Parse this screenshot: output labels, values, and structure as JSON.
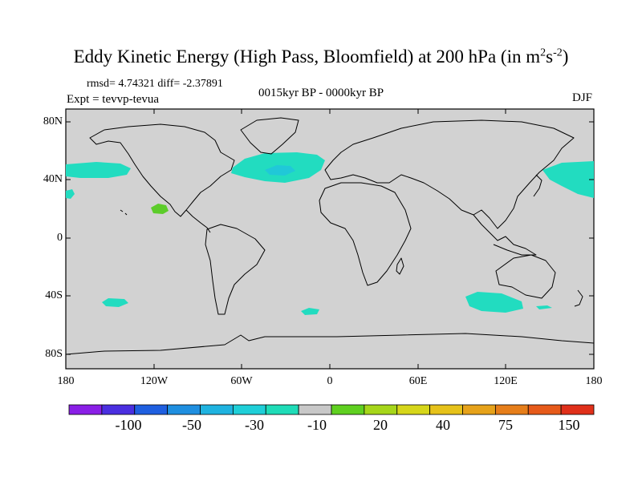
{
  "header": {
    "title": "Eddy Kinetic Energy (High Pass, Bloomfield) at 200 hPa (in m",
    "units_sup1": "2",
    "units_mid": "s",
    "units_sup2": "-2",
    "units_close": ")",
    "stats": "rmsd= 4.74321 diff= -2.37891",
    "subtitle": "0015kyr BP - 0000kyr BP",
    "experiment": "Expt = tevvp-tevua",
    "season": "DJF"
  },
  "map": {
    "lat_labels": [
      "80N",
      "40N",
      "0",
      "40S",
      "80S"
    ],
    "lon_labels": [
      "180",
      "120W",
      "60W",
      "0",
      "60E",
      "120E",
      "180"
    ]
  },
  "colorbar": {
    "labels": [
      "-100",
      "-50",
      "-30",
      "-10",
      "20",
      "40",
      "75",
      "150"
    ],
    "colors": [
      "#8a1fe6",
      "#4a2fe0",
      "#1f5fe0",
      "#1f8fe0",
      "#1fb3e0",
      "#1fcfd8",
      "#1fdcb8",
      "#c8c8c8",
      "#5fd020",
      "#a6d61a",
      "#d6d61a",
      "#e6c21a",
      "#e6a21a",
      "#e67e1a",
      "#e65a1a",
      "#e0301a"
    ]
  },
  "colors": {
    "land_ocean": "#d2d2d2",
    "anomaly_minus10": "#22dcc0",
    "anomaly_minus30": "#20c8d8",
    "anomaly_plus20": "#5ccc2a"
  }
}
